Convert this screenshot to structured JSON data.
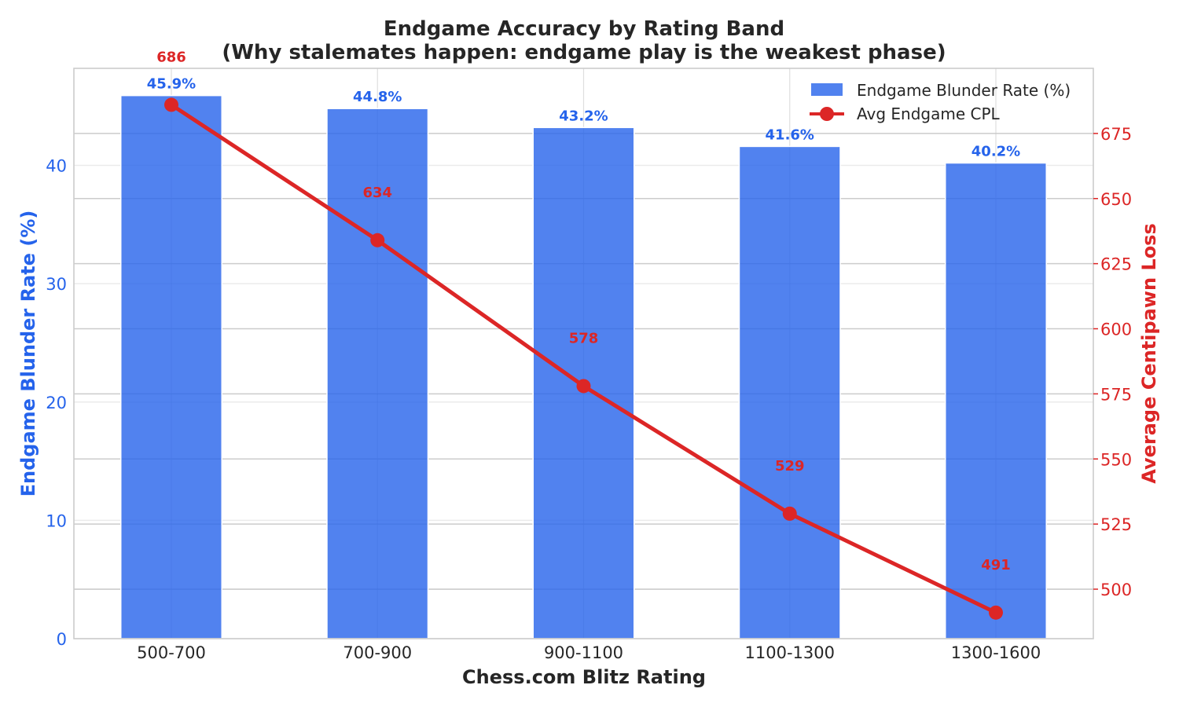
{
  "chart_data": {
    "type": "bar",
    "title": "Endgame Accuracy by Rating Band",
    "subtitle": "(Why stalemates happen: endgame play is the weakest phase)",
    "xlabel": "Chess.com Blitz Rating",
    "ylabel_left": "Endgame Blunder Rate (%)",
    "ylabel_right": "Average Centipawn Loss",
    "categories": [
      "500-700",
      "700-900",
      "900-1100",
      "1100-1300",
      "1300-1600"
    ],
    "series": [
      {
        "name": "Endgame Blunder Rate (%)",
        "type": "bar",
        "axis": "left",
        "color": "#2563eb",
        "values": [
          45.9,
          44.8,
          43.2,
          41.6,
          40.2
        ],
        "labels": [
          "45.9%",
          "44.8%",
          "43.2%",
          "41.6%",
          "40.2%"
        ]
      },
      {
        "name": "Avg Endgame CPL",
        "type": "line",
        "axis": "right",
        "color": "#dc2626",
        "values": [
          686,
          634,
          578,
          529,
          491
        ],
        "labels": [
          "686",
          "634",
          "578",
          "529",
          "491"
        ]
      }
    ],
    "ylim_left": [
      0,
      48.2
    ],
    "yticks_left": [
      "0",
      "10",
      "20",
      "30",
      "40"
    ],
    "ylim_right": [
      481,
      700
    ],
    "yticks_right": [
      "500",
      "525",
      "550",
      "575",
      "600",
      "625",
      "650",
      "675"
    ],
    "grid": true,
    "legend": "top-right"
  }
}
